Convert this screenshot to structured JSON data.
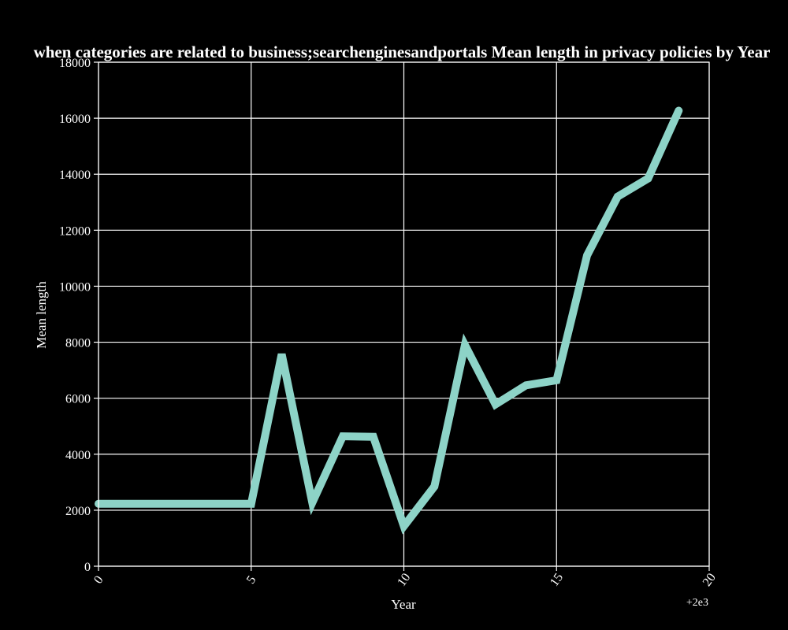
{
  "chart_data": {
    "type": "line",
    "title": "when categories are related to business;searchenginesandportals Mean length in privacy policies by Year",
    "xlabel": "Year",
    "ylabel": "Mean length",
    "x_offset_label": "+2e3",
    "xlim": [
      0,
      20
    ],
    "ylim": [
      0,
      18000
    ],
    "x_ticks": [
      0,
      5,
      10,
      15,
      20
    ],
    "x_tick_labels": [
      "0",
      "5",
      "10",
      "15",
      "20"
    ],
    "y_ticks": [
      0,
      2000,
      4000,
      6000,
      8000,
      10000,
      12000,
      14000,
      16000,
      18000
    ],
    "y_tick_labels": [
      "0",
      "2000",
      "4000",
      "6000",
      "8000",
      "10000",
      "12000",
      "14000",
      "16000",
      "18000"
    ],
    "grid": true,
    "series": [
      {
        "color": "#8dd3c7",
        "x": [
          0,
          1,
          2,
          3,
          4,
          5,
          6,
          7,
          8,
          9,
          10,
          11,
          12,
          13,
          14,
          15,
          16,
          17,
          18,
          19
        ],
        "values": [
          2230,
          2230,
          2230,
          2230,
          2230,
          2230,
          7570,
          2270,
          4640,
          4620,
          1430,
          2850,
          7900,
          5780,
          6460,
          6640,
          11100,
          13200,
          13850,
          16270
        ]
      }
    ]
  }
}
